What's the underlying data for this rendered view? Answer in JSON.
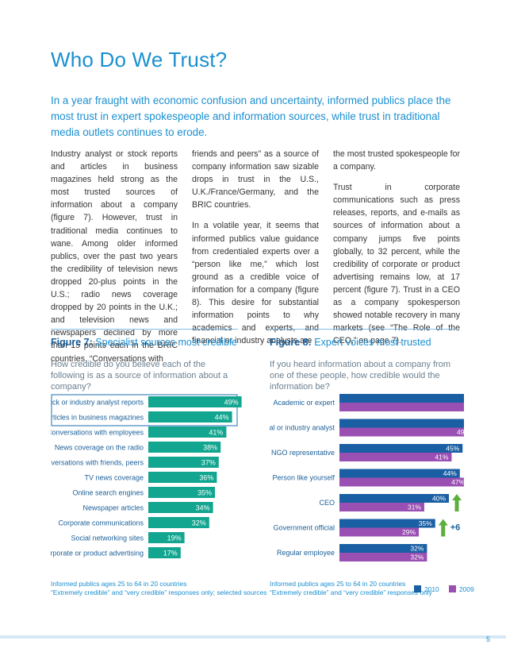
{
  "title": "Who Do We Trust?",
  "intro": "In a year fraught with economic confusion and uncertainty, informed publics place the most trust in expert spokespeople and information sources, while trust in traditional media outlets continues to erode.",
  "body": {
    "col1": [
      "Industry analyst or stock reports and articles in business magazines held strong as the most trusted sources of information about a company (figure 7). However, trust in traditional media continues to wane. Among older informed publics, over the past two years the credibility of television news dropped 20-plus points in the U.S.; radio news coverage dropped by 20 points in the U.K.; and television news and newspapers declined by more than 15 points each in the BRIC countries. “Conversations with"
    ],
    "col2": [
      "friends and peers” as a source of company information saw sizable drops in trust in the U.S., U.K./France/Germany, and the BRIC countries.",
      "In a volatile year, it seems that informed publics value guidance from credentialed experts over a “person like me,” which lost ground as a credible voice of information for a company (figure 8). This desire for substantial information points to why academics and experts, and financial or industry analysts are"
    ],
    "col3": [
      "the most trusted spokespeople for a company.",
      "Trust in corporate communications such as press releases, reports, and e-mails as sources of information about a company jumps five points globally, to 32 percent, while the credibility of corporate or product advertising remains low, at 17 percent (figure 7). Trust in a CEO as a company spokesperson showed notable recovery in many markets (see “The Role of the CEO,” on page 7)."
    ]
  },
  "fig7": {
    "num": "Figure 7:",
    "title": "Specialist sources most credible",
    "question": "How credible do you believe each of the following is as a source of information about a company?",
    "footnote1": "Informed publics ages 25 to 64 in 20 countries",
    "footnote2": "“Extremely credible” and “very credible” responses only; selected sources"
  },
  "fig8": {
    "num": "Figure 8:",
    "title": "Expert voices most trusted",
    "question": "If you heard information about a company from one of these people, how credible would the information be?",
    "footnote1": "Informed publics ages 25 to 64 in 20 countries",
    "footnote2": "“Extremely credible” and “very credible” responses only"
  },
  "legend": {
    "y2010": "2010",
    "y2009": "2009"
  },
  "page_number": "5",
  "colors": {
    "accent": "#1b8fd0",
    "teal": "#12a58f",
    "blue2010": "#1a5fa4",
    "purple2009": "#9a4fb2",
    "up": "#5cae3e",
    "down": "#d9302c"
  },
  "chart_data": [
    {
      "type": "bar",
      "orientation": "horizontal",
      "categories": [
        "Stock or industry analyst reports",
        "Articles in business magazines",
        "Conversations with employees",
        "News coverage on the radio",
        "Conversations with friends, peers",
        "TV news coverage",
        "Online search engines",
        "Newspaper articles",
        "Corporate communications",
        "Social networking sites",
        "Corporate or product advertising"
      ],
      "values": [
        49,
        44,
        41,
        38,
        37,
        36,
        35,
        34,
        32,
        19,
        17
      ],
      "data_labels": [
        "49%",
        "44%",
        "41%",
        "38%",
        "37%",
        "36%",
        "35%",
        "34%",
        "32%",
        "19%",
        "17%"
      ],
      "highlighted": [
        "Stock or industry analyst reports",
        "Articles in business magazines"
      ]
    },
    {
      "type": "bar",
      "orientation": "horizontal",
      "categories": [
        "Academic or expert",
        "Financial or industry analyst",
        "NGO representative",
        "Person like yourself",
        "CEO",
        "Government official",
        "Regular employee"
      ],
      "series": [
        {
          "name": "2010",
          "values": [
            64,
            52,
            45,
            44,
            40,
            35,
            32
          ],
          "labels": [
            "64%",
            "52%",
            "45%",
            "44%",
            "40%",
            "35%",
            "32%"
          ]
        },
        {
          "name": "2009",
          "values": [
            62,
            49,
            41,
            47,
            31,
            29,
            32
          ],
          "labels": [
            "62%",
            "49%",
            "41%",
            "47%",
            "31%",
            "29%",
            "32%"
          ]
        }
      ],
      "annotations": [
        {
          "category": "Person like yourself",
          "text": "-3",
          "direction": "down"
        },
        {
          "category": "CEO",
          "text": "+9",
          "direction": "up"
        },
        {
          "category": "Government official",
          "text": "+6",
          "direction": "up"
        }
      ]
    }
  ]
}
